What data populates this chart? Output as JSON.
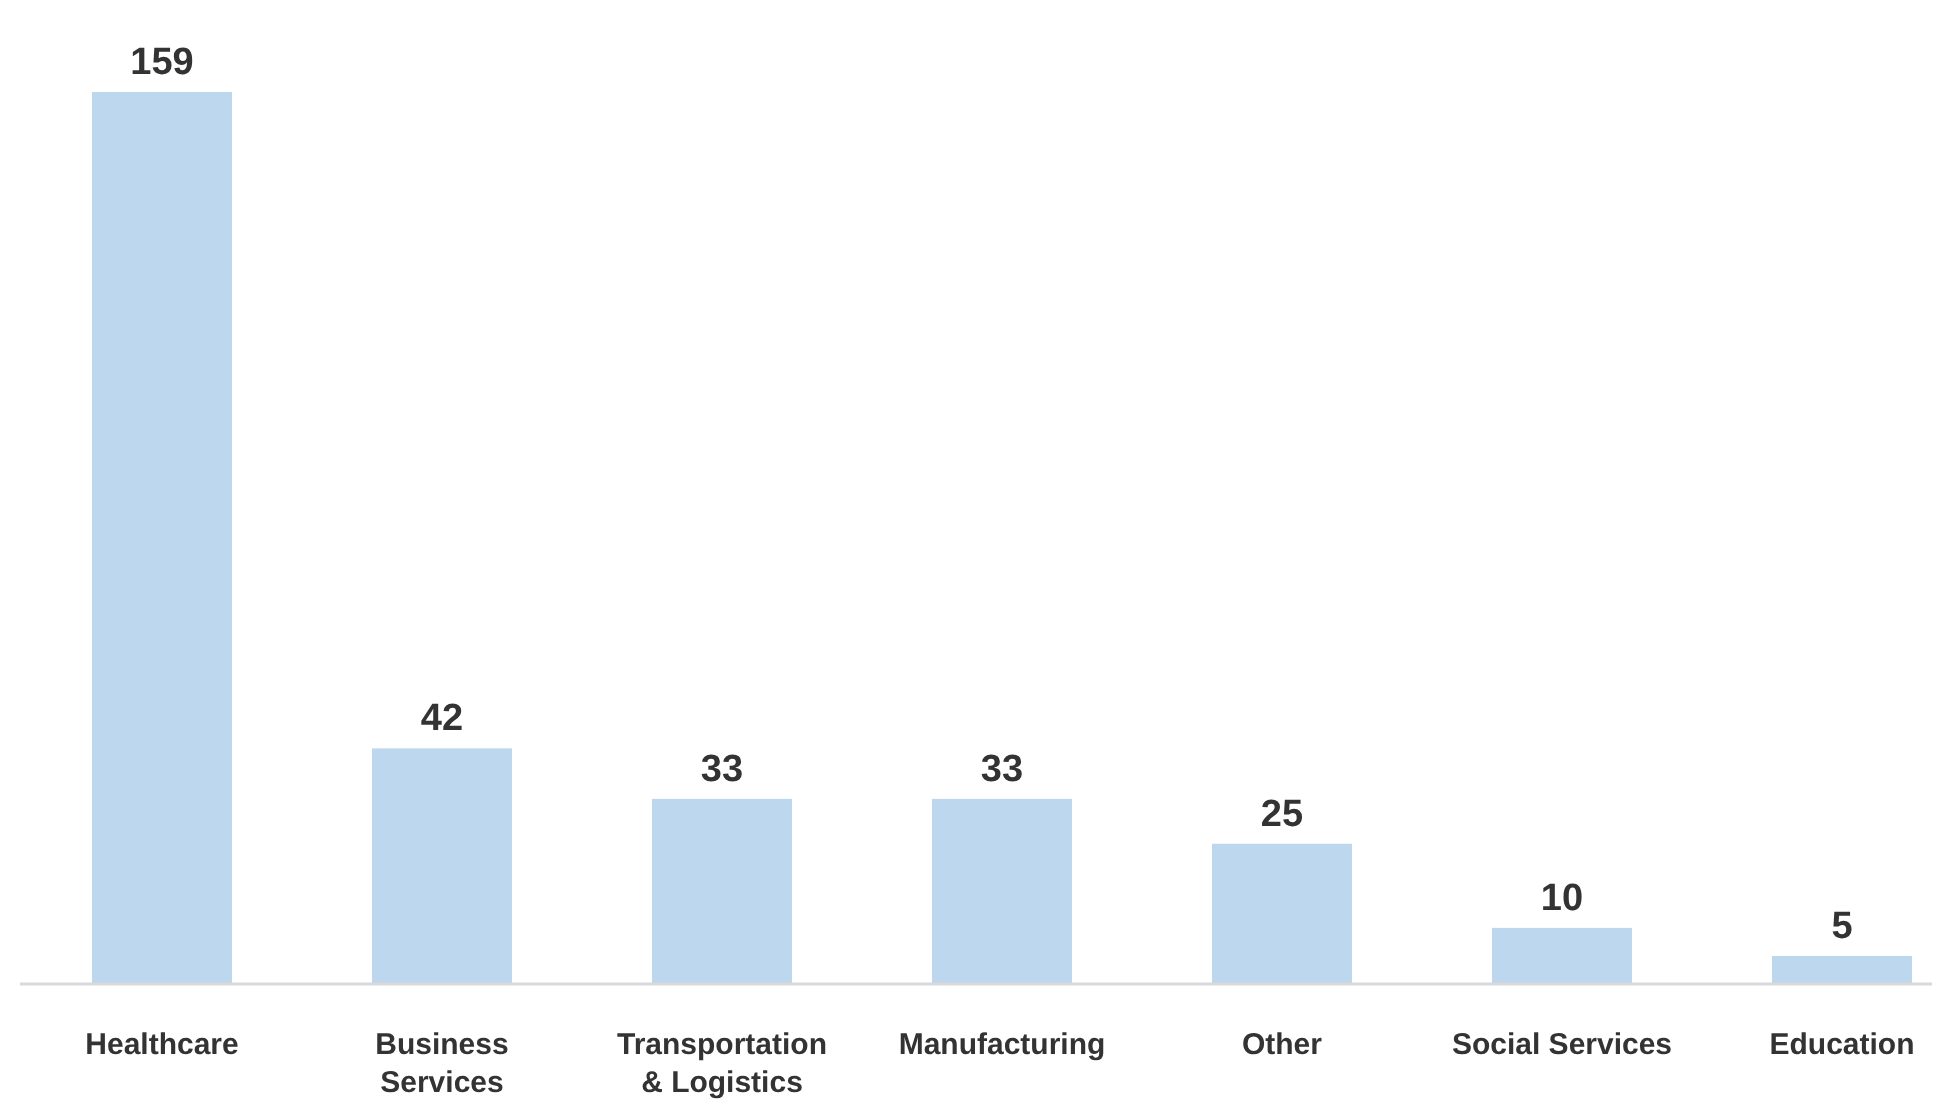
{
  "chart_data": {
    "type": "bar",
    "categories": [
      "Healthcare",
      "Business\nServices",
      "Transportation\n& Logistics",
      "Manufacturing",
      "Other",
      "Social Services",
      "Education"
    ],
    "values": [
      159,
      42,
      33,
      33,
      25,
      10,
      5
    ],
    "color": "#bdd7ee",
    "data_labels": true
  }
}
